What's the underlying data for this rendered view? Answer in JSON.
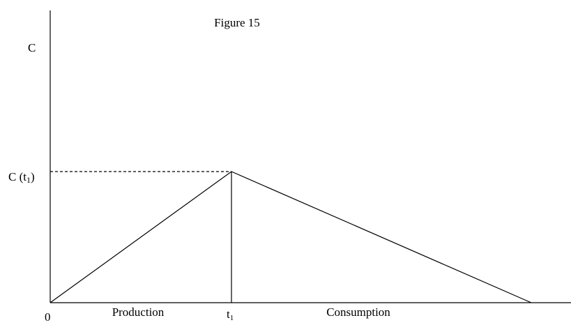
{
  "figure": {
    "title": "Figure 15",
    "y_axis_label": "C",
    "peak_label": {
      "main": "C (t",
      "sub": "1",
      "close": ")"
    },
    "origin_label": "0",
    "time_label": {
      "main": "t",
      "sub": "1"
    },
    "phases": [
      "Production",
      "Consumption"
    ]
  }
}
